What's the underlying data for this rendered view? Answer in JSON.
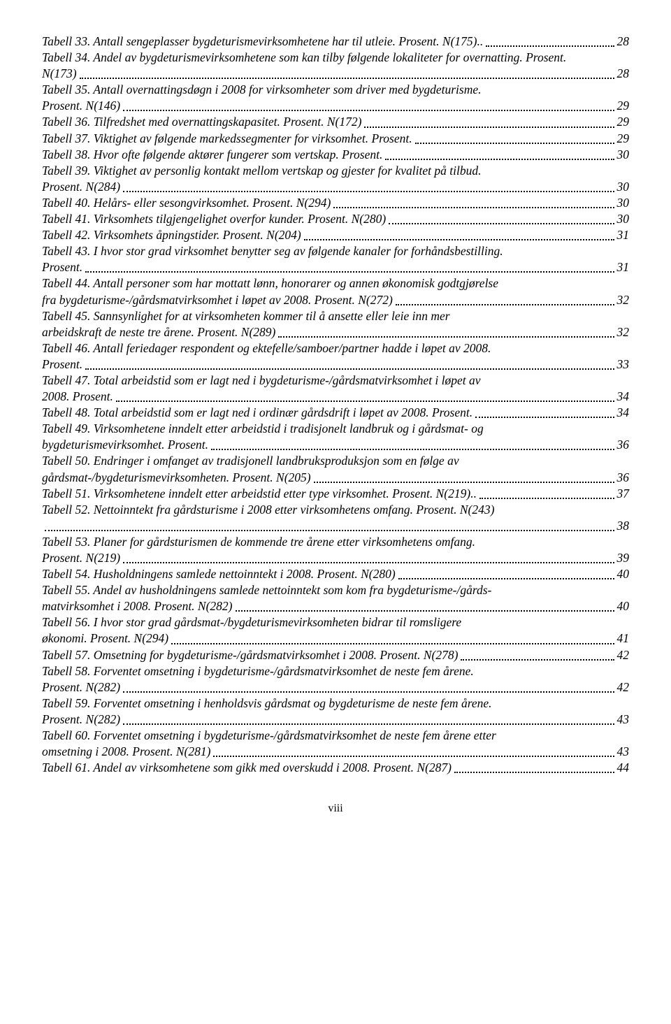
{
  "footer_page": "viii",
  "entries": [
    {
      "lines": [
        "Tabell 33. Antall sengeplasser bygdeturismevirksomhetene har til utleie. Prosent. N(175).."
      ],
      "page": "28"
    },
    {
      "lines": [
        "Tabell 34. Andel av bygdeturismevirksomhetene som kan tilby følgende lokaliteter for overnatting. Prosent.",
        "N(173)"
      ],
      "page": "28"
    },
    {
      "lines": [
        "Tabell 35. Antall overnattingsdøgn i 2008 for virksomheter som driver med bygdeturisme.",
        "Prosent. N(146)"
      ],
      "page": "29"
    },
    {
      "lines": [
        "Tabell 36. Tilfredshet med overnattingskapasitet. Prosent. N(172)"
      ],
      "page": "29"
    },
    {
      "lines": [
        "Tabell 37. Viktighet av følgende markedssegmenter for virksomhet. Prosent."
      ],
      "page": "29"
    },
    {
      "lines": [
        "Tabell 38. Hvor ofte følgende aktører fungerer som vertskap. Prosent."
      ],
      "page": "30"
    },
    {
      "lines": [
        "Tabell 39. Viktighet av personlig kontakt mellom vertskap og gjester for kvalitet på tilbud.",
        "Prosent. N(284)"
      ],
      "page": "30"
    },
    {
      "lines": [
        "Tabell 40. Helårs- eller sesongvirksomhet. Prosent. N(294)"
      ],
      "page": "30"
    },
    {
      "lines": [
        "Tabell 41. Virksomhets tilgjengelighet overfor kunder. Prosent. N(280)"
      ],
      "page": "30"
    },
    {
      "lines": [
        "Tabell 42. Virksomhets åpningstider. Prosent. N(204)"
      ],
      "page": "31"
    },
    {
      "lines": [
        "Tabell 43. I hvor stor grad virksomhet benytter seg av følgende kanaler for forhåndsbestilling.",
        "Prosent."
      ],
      "page": "31"
    },
    {
      "lines": [
        "Tabell 44. Antall personer som har mottatt lønn, honorarer og annen økonomisk godtgjørelse",
        "fra bygdeturisme-/gårdsmatvirksomhet i løpet av 2008. Prosent. N(272)"
      ],
      "page": "32"
    },
    {
      "lines": [
        "Tabell 45. Sannsynlighet for at virksomheten kommer til å ansette eller leie inn mer",
        "arbeidskraft de neste tre årene. Prosent. N(289)"
      ],
      "page": "32"
    },
    {
      "lines": [
        "Tabell 46. Antall feriedager respondent og ektefelle/samboer/partner hadde i løpet av 2008.",
        "Prosent."
      ],
      "page": "33"
    },
    {
      "lines": [
        "Tabell 47. Total arbeidstid som er lagt ned i bygdeturisme-/gårdsmatvirksomhet i løpet av",
        "2008. Prosent."
      ],
      "page": "34"
    },
    {
      "lines": [
        "Tabell 48. Total arbeidstid som er lagt ned i ordinær gårdsdrift i løpet av 2008. Prosent."
      ],
      "page": "34"
    },
    {
      "lines": [
        "Tabell 49. Virksomhetene inndelt etter arbeidstid i tradisjonelt landbruk og i gårdsmat- og",
        "bygdeturismevirksomhet. Prosent."
      ],
      "page": "36"
    },
    {
      "lines": [
        "Tabell 50. Endringer i omfanget av tradisjonell landbruksproduksjon som en følge av",
        "gårdsmat-/bygdeturismevirksomheten. Prosent. N(205)"
      ],
      "page": "36"
    },
    {
      "lines": [
        "Tabell 51. Virksomhetene inndelt etter arbeidstid etter type virksomhet. Prosent. N(219).."
      ],
      "page": "37"
    },
    {
      "lines": [
        "Tabell 52. Nettoinntekt fra gårdsturisme  i 2008 etter virksomhetens omfang. Prosent. N(243)",
        ""
      ],
      "page": "38"
    },
    {
      "lines": [
        "Tabell 53. Planer for gårdsturismen de kommende tre årene etter virksomhetens omfang.",
        "Prosent. N(219)"
      ],
      "page": "39"
    },
    {
      "lines": [
        "Tabell 54. Husholdningens samlede nettoinntekt i 2008. Prosent. N(280)"
      ],
      "page": "40"
    },
    {
      "lines": [
        "Tabell 55. Andel av husholdningens samlede nettoinntekt som kom fra bygdeturisme-/gårds-",
        "matvirksomhet i 2008. Prosent. N(282)"
      ],
      "page": "40"
    },
    {
      "lines": [
        "Tabell 56. I hvor stor grad gårdsmat-/bygdeturismevirksomheten bidrar til romsligere",
        "økonomi. Prosent. N(294)"
      ],
      "page": "41"
    },
    {
      "lines": [
        "Tabell 57. Omsetning for bygdeturisme-/gårdsmatvirksomhet i 2008. Prosent. N(278)"
      ],
      "page": "42"
    },
    {
      "lines": [
        "Tabell 58. Forventet omsetning i bygdeturisme-/gårdsmatvirksomhet de neste fem årene.",
        "Prosent. N(282)"
      ],
      "page": "42"
    },
    {
      "lines": [
        "Tabell 59. Forventet omsetning i henholdsvis gårdsmat og bygdeturisme de neste fem årene.",
        "Prosent. N(282)"
      ],
      "page": "43"
    },
    {
      "lines": [
        "Tabell 60. Forventet omsetning i bygdeturisme-/gårdsmatvirksomhet de neste fem årene etter",
        "omsetning i 2008. Prosent. N(281)"
      ],
      "page": "43"
    },
    {
      "lines": [
        "Tabell 61. Andel av virksomhetene som gikk med overskudd i 2008. Prosent. N(287)"
      ],
      "page": "44"
    }
  ]
}
